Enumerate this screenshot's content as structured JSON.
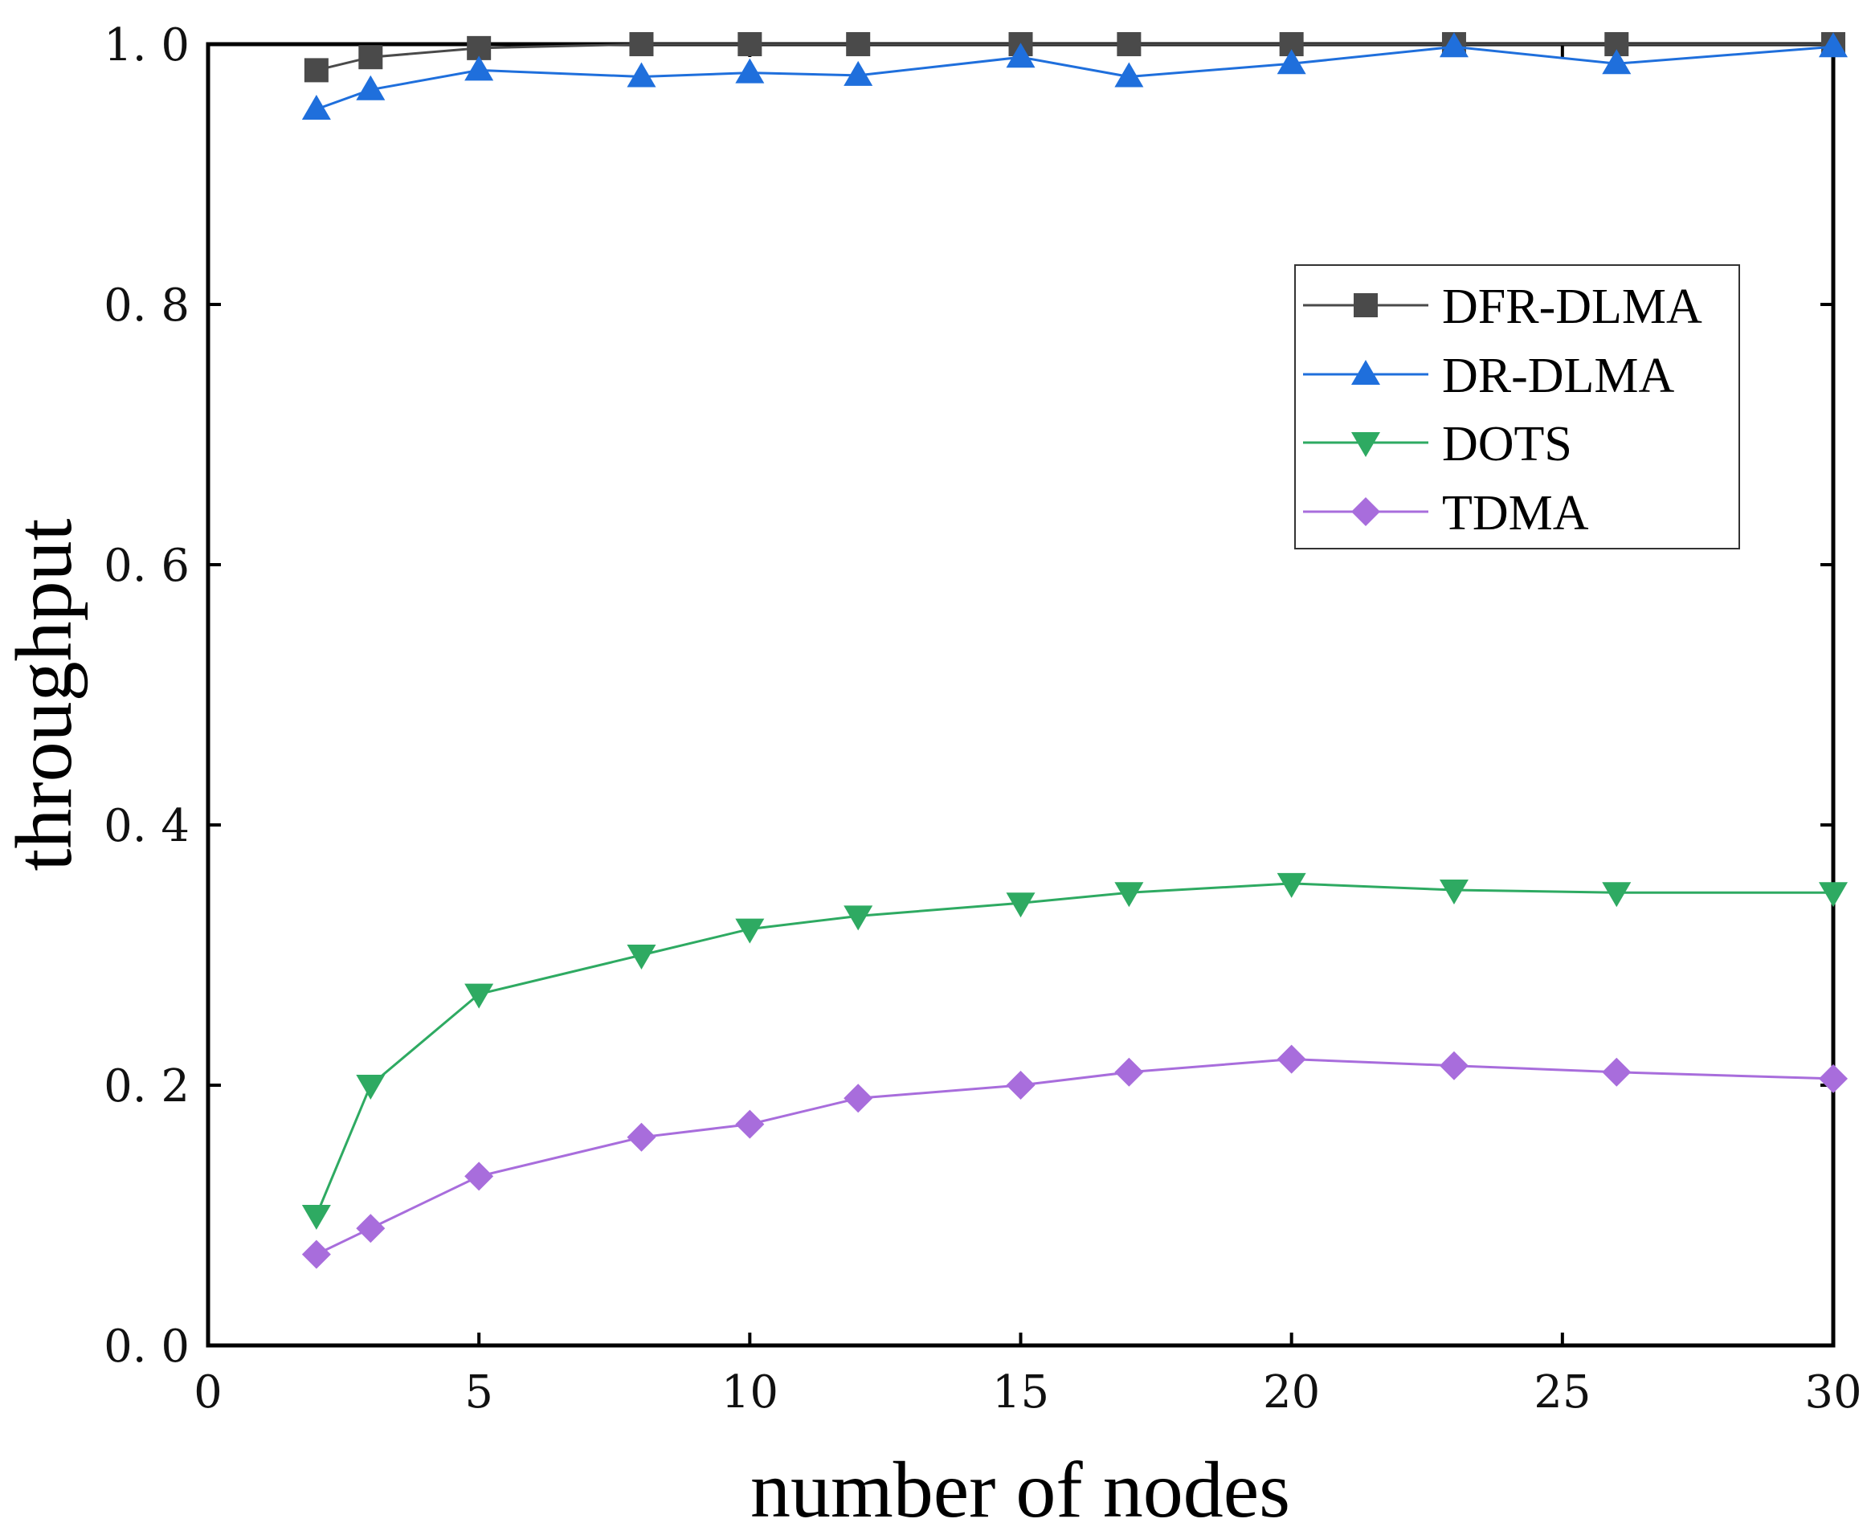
{
  "chart_data": {
    "type": "line",
    "title": "",
    "xlabel": "number of nodes",
    "ylabel": "throughput",
    "xlim": [
      0,
      30
    ],
    "ylim": [
      0,
      1.0
    ],
    "xticks": [
      0,
      5,
      10,
      15,
      20,
      25,
      30
    ],
    "xtick_labels": [
      "0",
      "5",
      "10",
      "15",
      "20",
      "25",
      "30"
    ],
    "yticks": [
      0.0,
      0.2,
      0.4,
      0.6,
      0.8,
      1.0
    ],
    "ytick_labels": [
      "0. 0",
      "0. 2",
      "0. 4",
      "0. 6",
      "0. 8",
      "1. 0"
    ],
    "grid": false,
    "legend_position": "upper-right",
    "x": [
      2,
      3,
      5,
      8,
      10,
      12,
      15,
      17,
      20,
      23,
      26,
      30
    ],
    "series": [
      {
        "name": "DFR-DLMA",
        "color": "#4a4a4a",
        "marker": "square",
        "values": [
          0.98,
          0.99,
          0.997,
          1.0,
          1.0,
          1.0,
          1.0,
          1.0,
          1.0,
          1.0,
          1.0,
          1.0
        ]
      },
      {
        "name": "DR-DLMA",
        "color": "#1f6fdc",
        "marker": "triangle-up",
        "values": [
          0.95,
          0.965,
          0.98,
          0.975,
          0.978,
          0.976,
          0.99,
          0.975,
          0.985,
          0.998,
          0.985,
          0.998
        ]
      },
      {
        "name": "DOTS",
        "color": "#2eaa62",
        "marker": "triangle-down",
        "values": [
          0.1,
          0.2,
          0.27,
          0.3,
          0.32,
          0.33,
          0.34,
          0.348,
          0.355,
          0.35,
          0.348,
          0.348
        ]
      },
      {
        "name": "TDMA",
        "color": "#a86ddc",
        "marker": "diamond",
        "values": [
          0.07,
          0.09,
          0.13,
          0.16,
          0.17,
          0.19,
          0.2,
          0.21,
          0.22,
          0.215,
          0.21,
          0.205
        ]
      }
    ]
  }
}
